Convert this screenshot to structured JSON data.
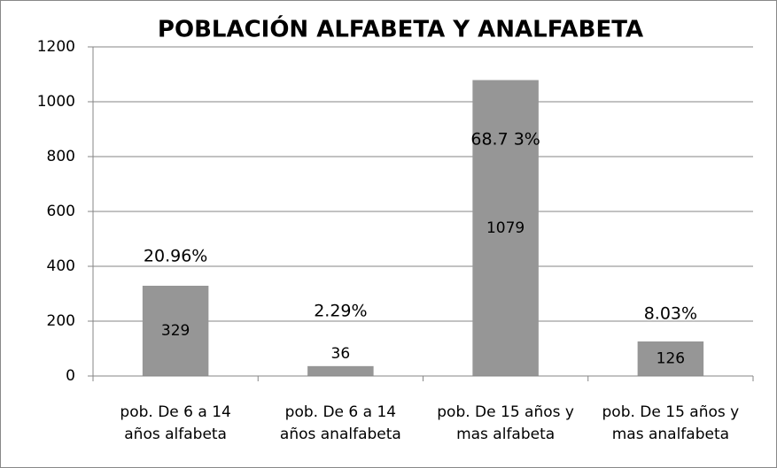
{
  "chart_data": {
    "type": "bar",
    "title": "POBLACIÓN ALFABETA Y ANALFABETA",
    "categories": [
      [
        "pob. De 6 a 14",
        "años alfabeta"
      ],
      [
        "pob. De 6 a 14",
        "años analfabeta"
      ],
      [
        "pob. De 15 años y",
        "mas alfabeta"
      ],
      [
        "pob. De 15 años y",
        "mas analfabeta"
      ]
    ],
    "values": [
      329,
      36,
      1079,
      126
    ],
    "annotations": [
      "20.96%",
      "2.29%",
      "68.7 3%",
      "8.03%"
    ],
    "color": "#969696",
    "ylim": [
      0,
      1200
    ],
    "yticks": [
      0,
      200,
      400,
      600,
      800,
      1000,
      1200
    ],
    "grid": true
  }
}
